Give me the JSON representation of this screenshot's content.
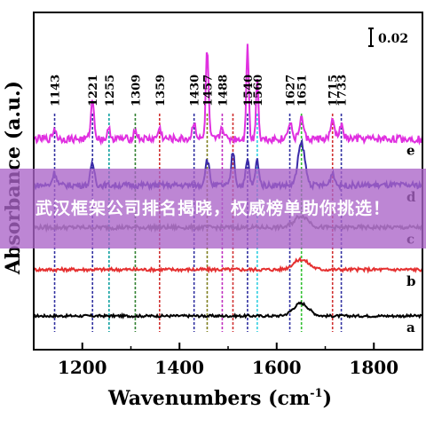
{
  "chart_data": {
    "type": "line",
    "xlabel": "Wavenumbers (cm",
    "xlabel_sup": "-1",
    "xlabel_close": ")",
    "ylabel": "Absorbance (a.u.)",
    "xlim": [
      1100,
      1900
    ],
    "xticks": [
      "1200",
      "1400",
      "1600",
      "1800"
    ],
    "xtick_values": [
      1200,
      1400,
      1600,
      1800
    ],
    "scale_bar_label": "0.02",
    "series": [
      {
        "name": "a",
        "color": "#000000",
        "baseline": 0.0,
        "noise": 0.03,
        "peaks": [
          [
            1650,
            0.15,
            22
          ]
        ]
      },
      {
        "name": "b",
        "color": "#e53030",
        "baseline": 0.55,
        "noise": 0.04,
        "peaks": [
          [
            1650,
            0.12,
            22
          ]
        ]
      },
      {
        "name": "c",
        "color": "#777777",
        "baseline": 1.05,
        "noise": 0.05,
        "peaks": [
          [
            1651,
            0.14,
            20
          ]
        ]
      },
      {
        "name": "d",
        "color": "#3a2aa8",
        "baseline": 1.55,
        "noise": 0.07,
        "peaks": [
          [
            1143,
            0.15,
            6
          ],
          [
            1221,
            0.25,
            6
          ],
          [
            1457,
            0.3,
            6
          ],
          [
            1510,
            0.4,
            5
          ],
          [
            1540,
            0.3,
            5
          ],
          [
            1560,
            0.3,
            5
          ],
          [
            1651,
            0.5,
            10
          ],
          [
            1715,
            0.15,
            6
          ]
        ]
      },
      {
        "name": "e",
        "color": "#e030e0",
        "baseline": 2.1,
        "noise": 0.09,
        "peaks": [
          [
            1143,
            0.12,
            5
          ],
          [
            1221,
            0.45,
            5
          ],
          [
            1255,
            0.1,
            5
          ],
          [
            1309,
            0.1,
            5
          ],
          [
            1359,
            0.12,
            5
          ],
          [
            1430,
            0.2,
            5
          ],
          [
            1457,
            1.05,
            4
          ],
          [
            1488,
            0.15,
            5
          ],
          [
            1540,
            1.15,
            3.5
          ],
          [
            1560,
            0.75,
            3.5
          ],
          [
            1627,
            0.2,
            6
          ],
          [
            1651,
            0.25,
            6
          ],
          [
            1715,
            0.2,
            6
          ],
          [
            1733,
            0.15,
            6
          ]
        ]
      }
    ],
    "reference_lines": [
      {
        "label": "1143",
        "x": 1143,
        "color": "#3030a0"
      },
      {
        "label": "1221",
        "x": 1221,
        "color": "#3030a0"
      },
      {
        "label": "1255",
        "x": 1255,
        "color": "#10a0a0"
      },
      {
        "label": "1309",
        "x": 1309,
        "color": "#308030"
      },
      {
        "label": "1359",
        "x": 1359,
        "color": "#d03030"
      },
      {
        "label": "1430",
        "x": 1430,
        "color": "#3030a0"
      },
      {
        "label": "1457",
        "x": 1457,
        "color": "#808020"
      },
      {
        "label": "1488",
        "x": 1488,
        "color": "#c030c0"
      },
      {
        "label": "",
        "x": 1510,
        "color": "#d03030"
      },
      {
        "label": "1540",
        "x": 1540,
        "color": "#3030a0"
      },
      {
        "label": "1560",
        "x": 1560,
        "color": "#30d0e0"
      },
      {
        "label": "1627",
        "x": 1627,
        "color": "#3030a0"
      },
      {
        "label": "1651",
        "x": 1651,
        "color": "#30c030"
      },
      {
        "label": "1715",
        "x": 1715,
        "color": "#d03030"
      },
      {
        "label": "1733",
        "x": 1733,
        "color": "#3030a0"
      }
    ]
  },
  "banner": {
    "text": "武汉框架公司排名揭晓，权威榜单助你挑选！"
  }
}
